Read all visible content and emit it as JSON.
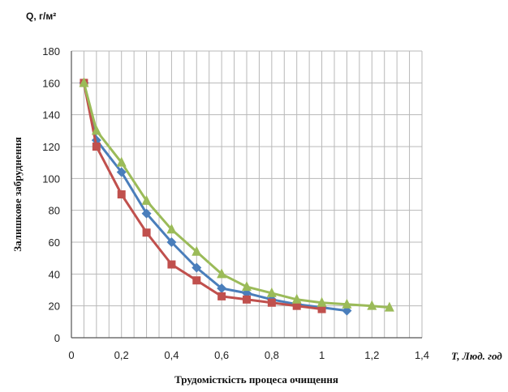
{
  "chart_data": {
    "type": "line",
    "ylabel": "Залишкове забруднення",
    "y_unit_label": "Q, г/м²",
    "xlabel": "Трудомісткість процеса очищення",
    "x_unit_label": "Т, Люд. год",
    "xlim": [
      0,
      1.4
    ],
    "ylim": [
      0,
      180
    ],
    "x_ticks": [
      0,
      0.2,
      0.4,
      0.6,
      0.8,
      1,
      1.2,
      1.4
    ],
    "x_tick_labels": [
      "0",
      "0,2",
      "0,4",
      "0,6",
      "0,8",
      "1",
      "1,2",
      "1,4"
    ],
    "y_ticks": [
      0,
      20,
      40,
      60,
      80,
      100,
      120,
      140,
      160,
      180
    ],
    "y_tick_labels": [
      "0",
      "20",
      "40",
      "60",
      "80",
      "100",
      "120",
      "140",
      "160",
      "180"
    ],
    "minor_x_step": 0.05,
    "grid": true,
    "series": [
      {
        "color": "#4a7ebb",
        "marker": "diamond",
        "x": [
          0.05,
          0.1,
          0.2,
          0.3,
          0.4,
          0.5,
          0.6,
          0.7,
          0.8,
          0.9,
          1.0,
          1.1
        ],
        "y": [
          160,
          124,
          104,
          78,
          60,
          44,
          31,
          28,
          24,
          21,
          19,
          17
        ]
      },
      {
        "color": "#c0504d",
        "marker": "square",
        "x": [
          0.05,
          0.1,
          0.2,
          0.3,
          0.4,
          0.5,
          0.6,
          0.7,
          0.8,
          0.9,
          1.0
        ],
        "y": [
          160,
          120,
          90,
          66,
          46,
          36,
          26,
          24,
          22,
          20,
          18
        ]
      },
      {
        "color": "#9bbb59",
        "marker": "triangle",
        "x": [
          0.05,
          0.1,
          0.2,
          0.3,
          0.4,
          0.5,
          0.6,
          0.7,
          0.8,
          0.9,
          1.0,
          1.1,
          1.2,
          1.27
        ],
        "y": [
          160,
          130,
          110,
          86,
          68,
          54,
          40,
          32,
          28,
          24,
          22,
          21,
          20,
          19
        ]
      }
    ]
  }
}
